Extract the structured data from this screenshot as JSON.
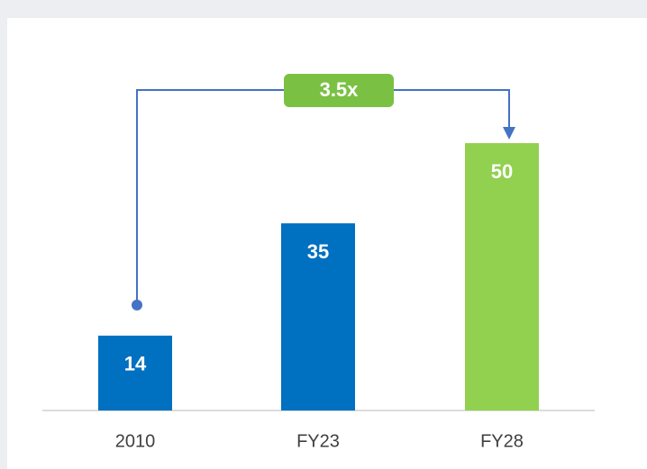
{
  "chart_data": {
    "type": "bar",
    "categories": [
      "2010",
      "FY23",
      "FY28"
    ],
    "values": [
      14,
      35,
      50
    ],
    "colors": [
      "#0070c0",
      "#0070c0",
      "#92d050"
    ],
    "annotation": "3.5x",
    "annotation_color": "#7ac143",
    "connector_color": "#4472c4"
  }
}
